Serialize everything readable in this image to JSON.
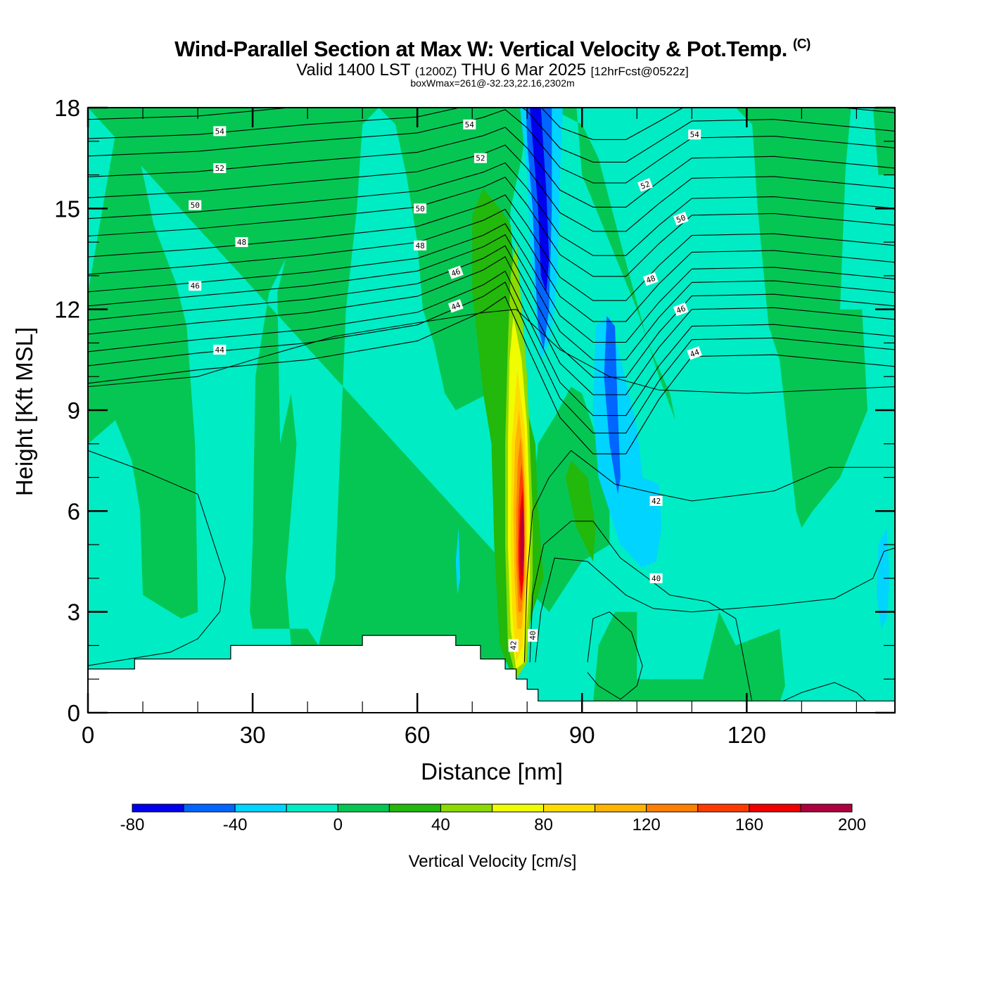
{
  "title": {
    "main": "Wind-Parallel Section at Max W: Vertical Velocity & Pot.Temp.",
    "copyright": "(C)",
    "valid_prefix": "Valid 1400 LST",
    "valid_utc": "(1200Z)",
    "valid_date": "THU 6 Mar 2025",
    "forecast": "[12hrFcst@0522z]",
    "boxwmax": "boxWmax=261@-32.23,22.16,2302m"
  },
  "chart_data": {
    "type": "heatmap",
    "title": "Wind-Parallel Section at Max W: Vertical Velocity & Pot.Temp.",
    "xlabel": "Distance [nm]",
    "ylabel": "Height [Kft MSL]",
    "xlim": [
      0,
      147
    ],
    "ylim": [
      0,
      18
    ],
    "x_ticks": [
      "0",
      "30",
      "60",
      "90",
      "120"
    ],
    "x_tick_values": [
      0,
      30,
      60,
      90,
      120
    ],
    "y_ticks": [
      "0",
      "3",
      "6",
      "9",
      "12",
      "15",
      "18"
    ],
    "y_tick_values": [
      0,
      3,
      6,
      9,
      12,
      15,
      18
    ],
    "colorbar": {
      "label": "Vertical Velocity [cm/s]",
      "levels": [
        -80,
        -60,
        -40,
        -20,
        0,
        20,
        40,
        60,
        80,
        100,
        120,
        140,
        160,
        180,
        200
      ],
      "tick_labels": [
        "-80",
        "-40",
        "0",
        "40",
        "80",
        "120",
        "160",
        "200"
      ],
      "tick_values": [
        -80,
        -40,
        0,
        40,
        80,
        120,
        160,
        200
      ],
      "colors": [
        "#0000ee",
        "#0066ff",
        "#00d4ff",
        "#00ecc4",
        "#06c653",
        "#22b80c",
        "#8cdb00",
        "#f0fc00",
        "#ffdc00",
        "#ffb400",
        "#ff8000",
        "#ff3c00",
        "#f00000",
        "#ae003f"
      ]
    },
    "max_w": 261,
    "contour_variable": "Potential Temperature",
    "contour_labels": [
      {
        "text": "54",
        "x": 24,
        "y": 17.3
      },
      {
        "text": "52",
        "x": 24,
        "y": 16.2
      },
      {
        "text": "50",
        "x": 19.5,
        "y": 15.1
      },
      {
        "text": "48",
        "x": 28,
        "y": 14.0
      },
      {
        "text": "46",
        "x": 19.5,
        "y": 12.7
      },
      {
        "text": "44",
        "x": 24,
        "y": 10.8
      },
      {
        "text": "54",
        "x": 69.5,
        "y": 17.5
      },
      {
        "text": "52",
        "x": 71.5,
        "y": 16.5
      },
      {
        "text": "50",
        "x": 60.5,
        "y": 15.0
      },
      {
        "text": "48",
        "x": 60.5,
        "y": 13.9
      },
      {
        "text": "46",
        "x": 67,
        "y": 13.1
      },
      {
        "text": "44",
        "x": 67,
        "y": 12.1
      },
      {
        "text": "54",
        "x": 110.5,
        "y": 17.2
      },
      {
        "text": "52",
        "x": 101.5,
        "y": 15.7
      },
      {
        "text": "50",
        "x": 108,
        "y": 14.7
      },
      {
        "text": "48",
        "x": 102.5,
        "y": 12.9
      },
      {
        "text": "46",
        "x": 108,
        "y": 12.0
      },
      {
        "text": "44",
        "x": 110.5,
        "y": 10.7
      },
      {
        "text": "42",
        "x": 103.5,
        "y": 6.3
      },
      {
        "text": "40",
        "x": 103.5,
        "y": 4.0
      },
      {
        "text": "42",
        "x": 77.5,
        "y": 2.0
      },
      {
        "text": "40",
        "x": 81,
        "y": 2.3
      }
    ]
  }
}
